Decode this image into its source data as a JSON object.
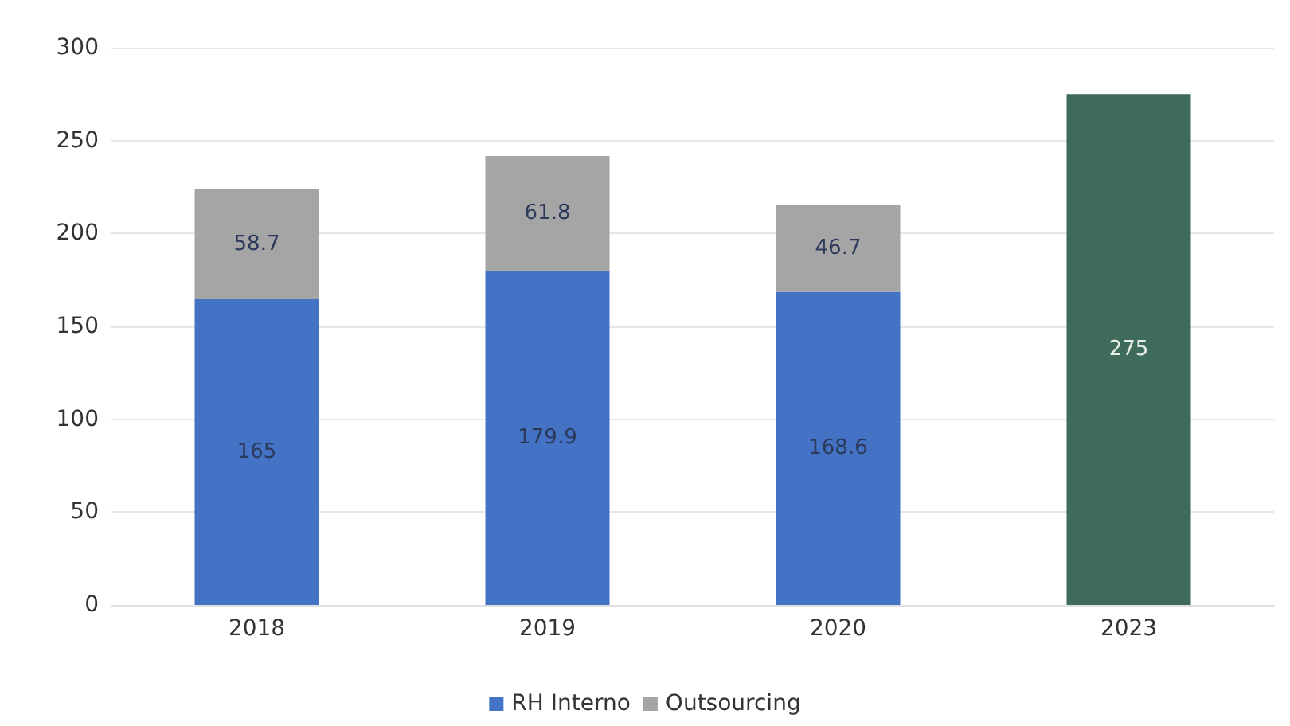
{
  "chart_data": {
    "type": "bar",
    "stacked": true,
    "categories": [
      "2018",
      "2019",
      "2020",
      "2023"
    ],
    "series": [
      {
        "name": "RH Interno",
        "color": "#4472c4",
        "values": [
          165,
          179.9,
          168.6,
          null
        ]
      },
      {
        "name": "Outsourcing",
        "color": "#a5a5a5",
        "values": [
          58.7,
          61.8,
          46.7,
          null
        ]
      },
      {
        "color": "#3e6b5a",
        "values": [
          null,
          null,
          null,
          275
        ]
      }
    ],
    "ylim": [
      0,
      300
    ],
    "yticks": [
      0,
      50,
      100,
      150,
      200,
      250,
      300
    ],
    "grid": "y",
    "legend": "bottom",
    "data_labels": true
  }
}
